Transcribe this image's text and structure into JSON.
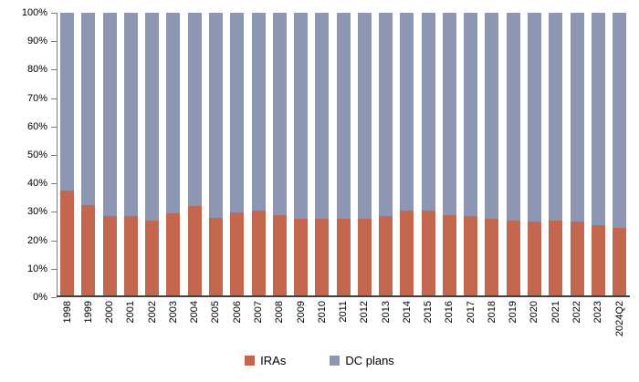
{
  "chart_data": {
    "type": "bar",
    "stacked": true,
    "percent_stacked": true,
    "title": "",
    "xlabel": "",
    "ylabel": "",
    "ylim": [
      0,
      100
    ],
    "ytick_step": 10,
    "yticks_top_to_bottom": [
      "100%",
      "90%",
      "80%",
      "70%",
      "60%",
      "50%",
      "40%",
      "30%",
      "20%",
      "10%",
      "0%"
    ],
    "legend_position": "bottom",
    "grid": false,
    "categories": [
      "1998",
      "1999",
      "2000",
      "2001",
      "2002",
      "2003",
      "2004",
      "2005",
      "2006",
      "2007",
      "2008",
      "2009",
      "2010",
      "2011",
      "2012",
      "2013",
      "2014",
      "2015",
      "2016",
      "2017",
      "2018",
      "2019",
      "2020",
      "2021",
      "2022",
      "2023",
      "2024Q2"
    ],
    "series": [
      {
        "name": "IRAs",
        "color": "#C4674E",
        "values": [
          37,
          32,
          28,
          28,
          26.5,
          29,
          31.5,
          27.5,
          29.5,
          30,
          28.5,
          27,
          27,
          27,
          27,
          28,
          30,
          30,
          28.5,
          28,
          27,
          26.5,
          26,
          26.5,
          26,
          25,
          24
        ]
      },
      {
        "name": "DC plans",
        "color": "#8D96B2",
        "values": [
          63,
          68,
          72,
          72,
          73.5,
          71,
          68.5,
          72.5,
          70.5,
          70,
          71.5,
          73,
          73,
          73,
          73,
          72,
          70,
          70,
          71.5,
          72,
          73,
          73.5,
          74,
          73.5,
          74,
          75,
          76
        ]
      }
    ]
  },
  "legend": {
    "items": [
      {
        "label": "IRAs",
        "color": "#C4674E"
      },
      {
        "label": "DC plans",
        "color": "#8D96B2"
      }
    ]
  }
}
